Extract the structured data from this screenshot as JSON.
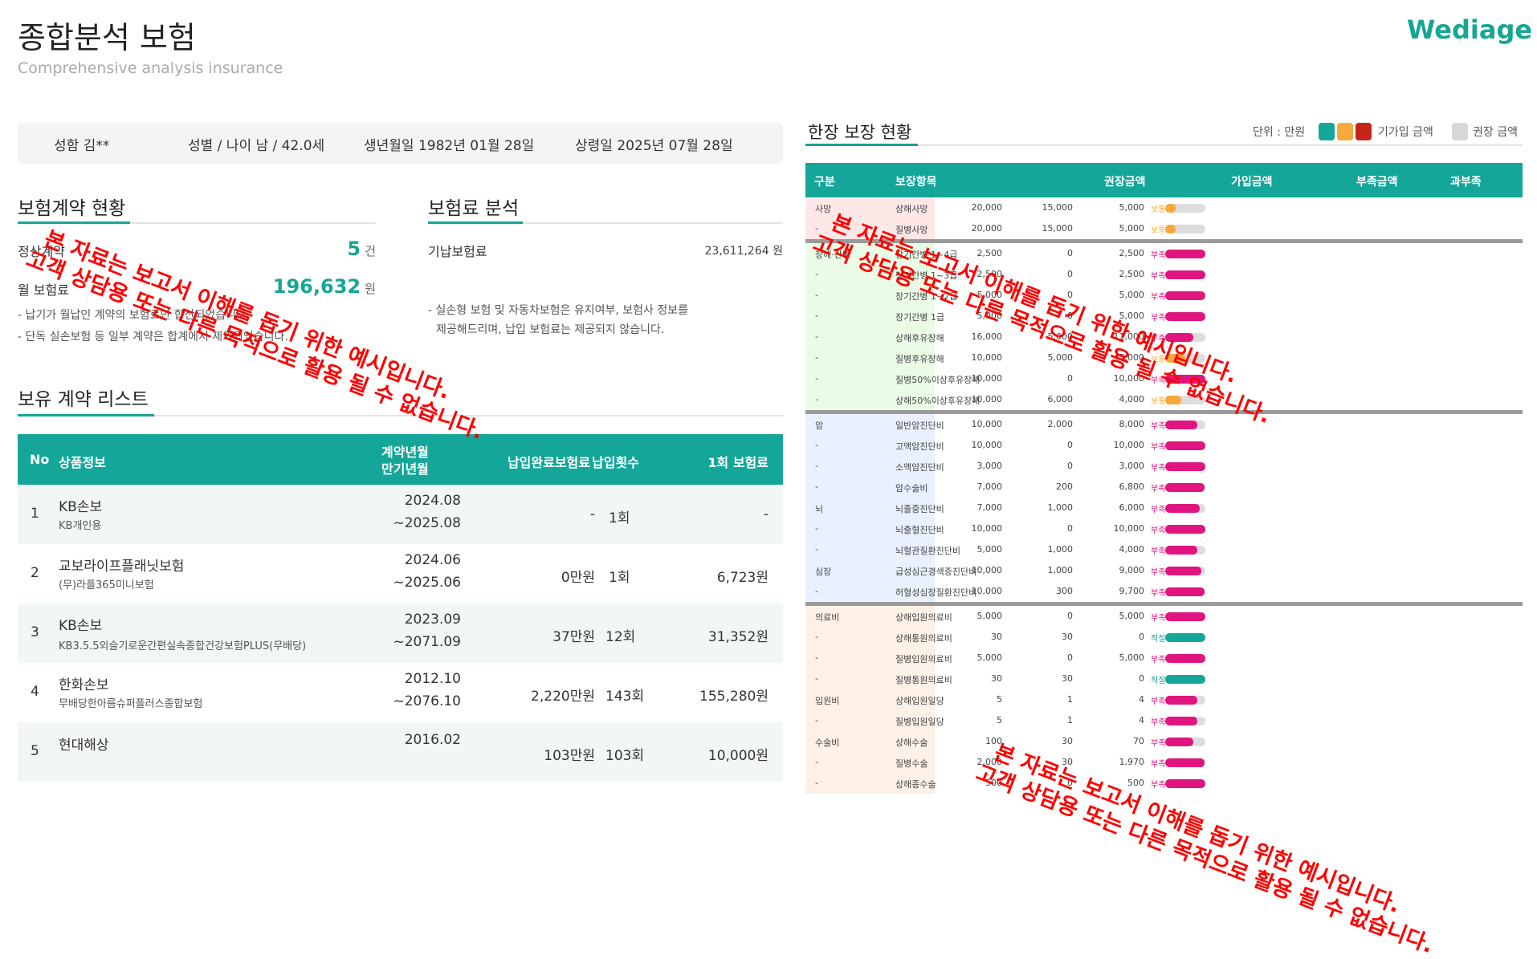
{
  "header": {
    "title": "종합분석 보험",
    "subtitle": "Comprehensive analysis insurance",
    "logo": "Wediage"
  },
  "customer": {
    "name": "성함  김**",
    "gender_age": "성별 / 나이  남 / 42.0세",
    "birth": "생년월일 1982년 01월 28일",
    "age_date": "상령일 2025년 07월 28일"
  },
  "contract_status": {
    "title": "보험계약 현황",
    "normal_label": "정상계약",
    "normal_count": "5",
    "normal_unit": "건",
    "monthly_label": "월 보험료",
    "monthly_value": "196,632",
    "monthly_unit": "원",
    "notes": [
      "- 납기가 월납인 계약의 보험료만 합산되었습니다.",
      "- 단독 실손보험 등 일부 계약은 합계에서 제외되었습니다."
    ]
  },
  "premium_analysis": {
    "title": "보험료 분석",
    "paid_label": "기납보험료",
    "paid_value": "23,611,264 원",
    "notes": [
      "- 실손형 보험 및 자동차보험은 유지여부, 보험사 정보를",
      "제공해드리며, 납입 보험료는 제공되지 않습니다."
    ]
  },
  "contract_list": {
    "title": "보유 계약 리스트",
    "headers": {
      "no": "No",
      "product": "상품정보",
      "date1": "계약년월",
      "date2": "만기년월",
      "paid": "납입완료보험료",
      "count": "납입횟수",
      "premium": "1회 보험료"
    },
    "rows": [
      {
        "no": "1",
        "company": "KB손보",
        "product": "KB개인용",
        "start": "2024.08",
        "end": "~2025.08",
        "paid": "-",
        "count": "1회",
        "premium": "-"
      },
      {
        "no": "2",
        "company": "교보라이프플래닛보험",
        "product": "(무)라플365미니보험",
        "start": "2024.06",
        "end": "~2025.06",
        "paid": "0만원",
        "count": "1회",
        "premium": "6,723원"
      },
      {
        "no": "3",
        "company": "KB손보",
        "product": "KB3.5.5외슬기로운간편실속종합건강보험PLUS(무배당)",
        "start": "2023.09",
        "end": "~2071.09",
        "paid": "37만원",
        "count": "12회",
        "premium": "31,352원"
      },
      {
        "no": "4",
        "company": "한화손보",
        "product": "무배당한아름슈퍼플러스종합보험",
        "start": "2012.10",
        "end": "~2076.10",
        "paid": "2,220만원",
        "count": "143회",
        "premium": "155,280원"
      },
      {
        "no": "5",
        "company": "현대해상",
        "product": "",
        "start": "2016.02",
        "end": "",
        "paid": "103만원",
        "count": "103회",
        "premium": "10,000원"
      }
    ]
  },
  "coverage": {
    "title": "한장 보장 현황",
    "unit": "단위 : 만원",
    "legend_enrolled": "기가입 금액",
    "legend_recommended": "권장 금액",
    "legend_colors": [
      "#14a699",
      "#f7a93b",
      "#c8231a",
      "#d8d8d8"
    ],
    "status_colors": {
      "보통": "#f7a93b",
      "부족": "#e0157f",
      "적절": "#14a699"
    },
    "headers": {
      "category": "구분",
      "item": "보장항목",
      "recommended": "권장금액",
      "enrolled": "가입금액",
      "shortage": "부족금액",
      "status": "과부족"
    },
    "groups": [
      {
        "bg": "#fde7e7",
        "rows": [
          [
            "사망",
            "상해사망",
            "20,000",
            "15,000",
            "5,000",
            "보통",
            25
          ],
          [
            "-",
            "질병사망",
            "20,000",
            "15,000",
            "5,000",
            "보통",
            25
          ]
        ]
      },
      {
        "bg": "#eafbe6",
        "rows": [
          [
            "장해·간병",
            "장기간병 1~4급",
            "2,500",
            "0",
            "2,500",
            "부족",
            100
          ],
          [
            "-",
            "장기간병 1~3급",
            "2,500",
            "0",
            "2,500",
            "부족",
            100
          ],
          [
            "-",
            "장기간병 1~2급",
            "5,000",
            "0",
            "5,000",
            "부족",
            100
          ],
          [
            "-",
            "장기간병 1급",
            "5,000",
            "0",
            "5,000",
            "부족",
            100
          ],
          [
            "-",
            "상해후유장해",
            "16,000",
            "5,000",
            "11,000",
            "부족",
            69
          ],
          [
            "-",
            "질병후유장해",
            "10,000",
            "5,000",
            "5,000",
            "보통",
            50
          ],
          [
            "-",
            "질병50%이상후유장해",
            "10,000",
            "0",
            "10,000",
            "부족",
            100
          ],
          [
            "-",
            "상해50%이상후유장해",
            "10,000",
            "6,000",
            "4,000",
            "보통",
            40
          ]
        ]
      },
      {
        "bg": "#eaf0ff",
        "rows": [
          [
            "암",
            "일반암진단비",
            "10,000",
            "2,000",
            "8,000",
            "부족",
            80
          ],
          [
            "-",
            "고액암진단비",
            "10,000",
            "0",
            "10,000",
            "부족",
            100
          ],
          [
            "-",
            "소액암진단비",
            "3,000",
            "0",
            "3,000",
            "부족",
            100
          ],
          [
            "-",
            "암수술비",
            "7,000",
            "200",
            "6,800",
            "부족",
            97
          ],
          [
            "뇌",
            "뇌졸중진단비",
            "7,000",
            "1,000",
            "6,000",
            "부족",
            86
          ],
          [
            "-",
            "뇌출혈진단비",
            "10,000",
            "0",
            "10,000",
            "부족",
            100
          ],
          [
            "-",
            "뇌혈관질환진단비",
            "5,000",
            "1,000",
            "4,000",
            "부족",
            80
          ],
          [
            "심장",
            "급성심근경색증진단비",
            "10,000",
            "1,000",
            "9,000",
            "부족",
            90
          ],
          [
            "-",
            "허혈성심장질환진단비",
            "10,000",
            "300",
            "9,700",
            "부족",
            97
          ]
        ]
      },
      {
        "bg": "#fdf0e7",
        "rows": [
          [
            "의료비",
            "상해입원의료비",
            "5,000",
            "0",
            "5,000",
            "부족",
            100
          ],
          [
            "-",
            "상해통원의료비",
            "30",
            "30",
            "0",
            "적절",
            100
          ],
          [
            "-",
            "질병입원의료비",
            "5,000",
            "0",
            "5,000",
            "부족",
            100
          ],
          [
            "-",
            "질병통원의료비",
            "30",
            "30",
            "0",
            "적절",
            100
          ],
          [
            "입원비",
            "상해입원일당",
            "5",
            "1",
            "4",
            "부족",
            80
          ],
          [
            "-",
            "질병입원일당",
            "5",
            "1",
            "4",
            "부족",
            80
          ],
          [
            "수술비",
            "상해수술",
            "100",
            "30",
            "70",
            "부족",
            70
          ],
          [
            "-",
            "질병수술",
            "2,000",
            "30",
            "1,970",
            "부족",
            98
          ],
          [
            "-",
            "상해종수술",
            "500",
            "0",
            "500",
            "부족",
            100
          ]
        ]
      }
    ]
  },
  "watermark": {
    "line1": "본 자료는 보고서 이해를 돕기 위한 예시입니다.",
    "line2": "고객 상담용 또는 다른 목적으로 활용 될 수 없습니다."
  }
}
